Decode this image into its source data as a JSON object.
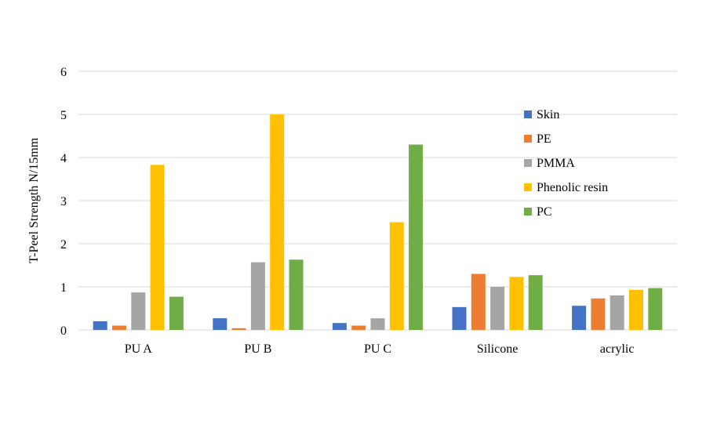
{
  "chart_data": {
    "type": "bar",
    "title": "",
    "xlabel": "",
    "ylabel": "T-Peel Strength N/15mm",
    "ylim": [
      0,
      6
    ],
    "yticks": [
      0,
      1,
      2,
      3,
      4,
      5,
      6
    ],
    "grid": true,
    "legend_position": "right",
    "categories": [
      "PU A",
      "PU B",
      "PU C",
      "Silicone",
      "acrylic"
    ],
    "series": [
      {
        "name": "Skin",
        "color": "#4472c4",
        "values": [
          0.2,
          0.27,
          0.16,
          0.53,
          0.56
        ]
      },
      {
        "name": "PE",
        "color": "#ed7d31",
        "values": [
          0.1,
          0.04,
          0.1,
          1.3,
          0.73
        ]
      },
      {
        "name": "PMMA",
        "color": "#a5a5a5",
        "values": [
          0.87,
          1.57,
          0.27,
          1.0,
          0.8
        ]
      },
      {
        "name": "Phenolic resin",
        "color": "#ffc000",
        "values": [
          3.83,
          5.0,
          2.5,
          1.23,
          0.93
        ]
      },
      {
        "name": "PC",
        "color": "#70ad47",
        "values": [
          0.77,
          1.63,
          4.3,
          1.27,
          0.97
        ]
      }
    ]
  }
}
